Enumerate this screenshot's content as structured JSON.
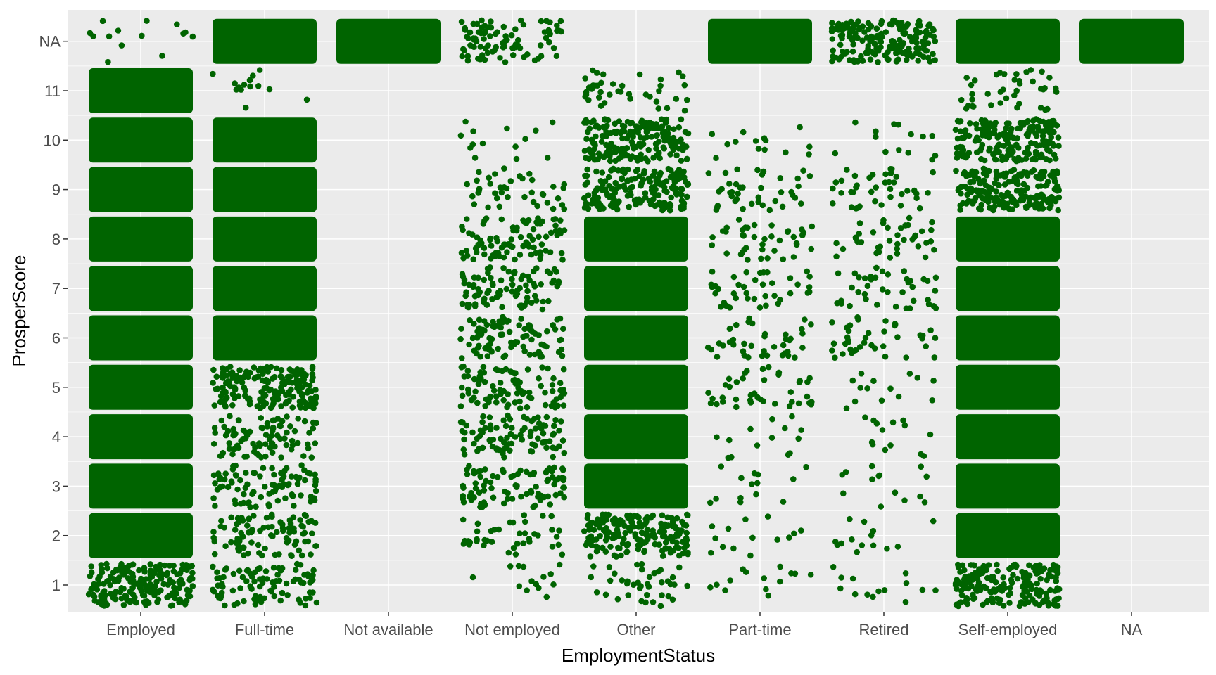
{
  "chart_data": {
    "type": "scatter",
    "subtype": "jitter",
    "title": "",
    "xlabel": "EmploymentStatus",
    "ylabel": "ProsperScore",
    "categories": [
      "Employed",
      "Full-time",
      "Not available",
      "Not employed",
      "Other",
      "Part-time",
      "Retired",
      "Self-employed",
      "NA"
    ],
    "y_levels": [
      "1",
      "2",
      "3",
      "4",
      "5",
      "6",
      "7",
      "8",
      "9",
      "10",
      "11",
      "NA"
    ],
    "point_color": "#006400",
    "panel_background": "#ebebeb",
    "grid_color": "#ffffff",
    "grid": true,
    "legend": "none",
    "density_scale": "0 = no points, 1 = sparse, 2 = light, 3 = medium, 4 = dense, 5 = solid",
    "point_density": {
      "Employed": [
        4,
        5,
        5,
        5,
        5,
        5,
        5,
        5,
        5,
        5,
        5,
        1
      ],
      "Full-time": [
        3,
        3,
        3,
        3,
        4,
        5,
        5,
        5,
        5,
        5,
        1,
        5
      ],
      "Not available": [
        0,
        0,
        0,
        0,
        0,
        0,
        0,
        0,
        0,
        0,
        0,
        5
      ],
      "Not employed": [
        1,
        2,
        3,
        3,
        3,
        3,
        3,
        3,
        2,
        1,
        0,
        3
      ],
      "Other": [
        2,
        4,
        5,
        5,
        5,
        5,
        5,
        5,
        4,
        4,
        2,
        0
      ],
      "Part-time": [
        1,
        1,
        1,
        1,
        2,
        2,
        2,
        2,
        2,
        1,
        0,
        5
      ],
      "Retired": [
        1,
        1,
        1,
        1,
        1,
        2,
        2,
        2,
        2,
        1,
        0,
        4
      ],
      "Self-employed": [
        4,
        5,
        5,
        5,
        5,
        5,
        5,
        5,
        4,
        4,
        2,
        5
      ],
      "NA": [
        0,
        0,
        0,
        0,
        0,
        0,
        0,
        0,
        0,
        0,
        0,
        5
      ]
    }
  }
}
